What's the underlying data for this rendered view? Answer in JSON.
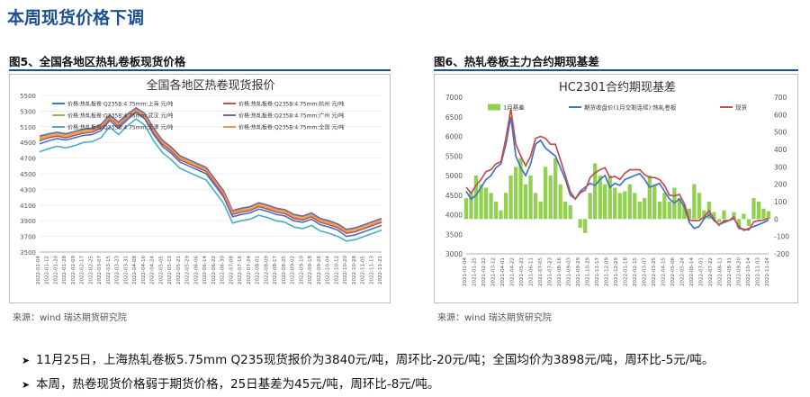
{
  "page_title": "本周现货价格下调",
  "left_figure": {
    "caption": "图5、全国各地区热轧卷板现货价格",
    "source": "来源：wind   瑞达期货研究院"
  },
  "right_figure": {
    "caption": "图6、热轧卷板主力合约期现基差",
    "source": "来源：wind   瑞达期货研究院"
  },
  "bullets": [
    "11月25日，上海热轧卷板5.75mm Q235现货报价为3840元/吨，周环比-20元/吨；全国均价为3898元/吨，周环比-5元/吨。",
    "本周，热卷现货价格弱于期货价格，25日基差为45元/吨，周环比-8元/吨。"
  ],
  "colors": {
    "title": "#1d4f91",
    "rule": "#1d4f91"
  },
  "chart_data": [
    {
      "type": "line",
      "title": "全国各地区热卷现货报价",
      "ylim": [
        3500,
        5500
      ],
      "yticks": [
        3500,
        3700,
        3900,
        4100,
        4300,
        4500,
        4700,
        4900,
        5100,
        5300,
        5500
      ],
      "x_tick_labels": [
        "2022-01-04",
        "2022-01-12",
        "2022-01-20",
        "2022-01-28",
        "2022-02-09",
        "2022-02-17",
        "2022-02-25",
        "2022-03-07",
        "2022-03-15",
        "2022-03-23",
        "2022-03-31",
        "2022-04-08",
        "2022-04-16",
        "2022-04-24",
        "2022-05-05",
        "2022-05-13",
        "2022-05-21",
        "2022-05-29",
        "2022-06-06",
        "2022-06-14",
        "2022-06-22",
        "2022-06-30",
        "2022-07-08",
        "2022-07-16",
        "2022-07-24",
        "2022-08-01",
        "2022-08-09",
        "2022-08-17",
        "2022-08-25",
        "2022-09-02",
        "2022-09-10",
        "2022-09-18",
        "2022-09-26",
        "2022-10-04",
        "2022-10-12",
        "2022-10-20",
        "2022-10-28",
        "2022-11-05",
        "2022-11-13",
        "2022-11-21"
      ],
      "legend": [
        "价格:热轧板卷:Q235B:4.75mm:上海 元/吨",
        "价格:热轧板卷:Q235B:4.75mm:杭州 元/吨",
        "价格:热轧板卷:Q235B:4.75mm:武汉 元/吨",
        "价格:热轧板卷:Q235B:4.75mm:广州 元/吨",
        "价格:热轧板卷:Q235B:4.75mm:天津 元/吨",
        "价格:热轧板卷:Q235B:4.75mm:全国 元/吨"
      ],
      "series": [
        {
          "name": "价格:热轧板卷:Q235B:4.75mm:上海 元/吨",
          "color": "#4472c4",
          "values": [
            4880,
            4920,
            4950,
            4930,
            4960,
            4990,
            5000,
            5050,
            5180,
            5080,
            5190,
            5280,
            5200,
            5000,
            4850,
            4760,
            4650,
            4600,
            4550,
            4500,
            4350,
            4200,
            3950,
            3980,
            4000,
            4050,
            4020,
            3980,
            3960,
            3900,
            3880,
            3920,
            3850,
            3820,
            3780,
            3700,
            3720,
            3760,
            3800,
            3840
          ]
        },
        {
          "name": "价格:热轧板卷:Q235B:4.75mm:杭州 元/吨",
          "color": "#c0504d",
          "values": [
            4920,
            4960,
            4980,
            4960,
            4990,
            5020,
            5030,
            5080,
            5210,
            5110,
            5220,
            5300,
            5230,
            5030,
            4880,
            4790,
            4680,
            4630,
            4580,
            4530,
            4380,
            4230,
            3980,
            4010,
            4030,
            4080,
            4050,
            4010,
            3990,
            3930,
            3910,
            3950,
            3880,
            3850,
            3810,
            3740,
            3760,
            3800,
            3840,
            3880
          ]
        },
        {
          "name": "价格:热轧板卷:Q235B:4.75mm:武汉 元/吨",
          "color": "#9bbb59",
          "values": [
            4960,
            5000,
            5020,
            5000,
            5030,
            5060,
            5070,
            5120,
            5240,
            5150,
            5250,
            5330,
            5260,
            5070,
            4920,
            4830,
            4720,
            4670,
            4620,
            4570,
            4420,
            4270,
            4020,
            4050,
            4070,
            4120,
            4090,
            4050,
            4030,
            3970,
            3950,
            3990,
            3920,
            3890,
            3850,
            3780,
            3800,
            3840,
            3880,
            3920
          ]
        },
        {
          "name": "价格:热轧板卷:Q235B:4.75mm:广州 元/吨",
          "color": "#8064a2",
          "values": [
            4980,
            5010,
            5030,
            5010,
            5040,
            5070,
            5080,
            5130,
            5250,
            5160,
            5260,
            5340,
            5270,
            5080,
            4930,
            4840,
            4730,
            4680,
            4630,
            4580,
            4430,
            4280,
            4030,
            4060,
            4080,
            4130,
            4100,
            4060,
            4040,
            3980,
            3960,
            4000,
            3930,
            3900,
            3860,
            3790,
            3810,
            3850,
            3890,
            3930
          ]
        },
        {
          "name": "价格:热轧板卷:Q235B:4.75mm:天津 元/吨",
          "color": "#4bacc6",
          "values": [
            4780,
            4820,
            4850,
            4830,
            4860,
            4900,
            4910,
            4960,
            5100,
            5000,
            5110,
            5200,
            5120,
            4920,
            4770,
            4680,
            4570,
            4520,
            4470,
            4420,
            4270,
            4120,
            3870,
            3900,
            3920,
            3970,
            3940,
            3900,
            3880,
            3820,
            3800,
            3840,
            3770,
            3740,
            3700,
            3640,
            3660,
            3700,
            3740,
            3780
          ]
        },
        {
          "name": "价格:热轧板卷:Q235B:4.75mm:全国 元/吨",
          "color": "#f79646",
          "values": [
            4940,
            4980,
            5000,
            4980,
            5010,
            5040,
            5050,
            5100,
            5220,
            5130,
            5230,
            5310,
            5240,
            5050,
            4900,
            4810,
            4700,
            4650,
            4600,
            4550,
            4400,
            4250,
            4000,
            4030,
            4050,
            4100,
            4070,
            4030,
            4010,
            3950,
            3930,
            3970,
            3900,
            3870,
            3830,
            3760,
            3780,
            3820,
            3860,
            3898
          ]
        }
      ]
    },
    {
      "type": "line",
      "title": "HC2301合约期现基差",
      "ylim_left": [
        3000,
        7000
      ],
      "yticks_left": [
        3000,
        3500,
        4000,
        4500,
        5000,
        5500,
        6000,
        6500,
        7000
      ],
      "ylim_right": [
        -200,
        700
      ],
      "yticks_right": [
        -200,
        -100,
        0,
        100,
        200,
        300,
        400,
        500,
        600,
        700
      ],
      "x_tick_labels": [
        "2021-01-04",
        "2021-01-25",
        "2021-02-22",
        "2021-03-12",
        "2021-04-01",
        "2021-04-22",
        "2021-05-21",
        "2021-06-11",
        "2021-07-05",
        "2021-07-23",
        "2021-08-16",
        "2021-09-03",
        "2021-09-29",
        "2021-10-29",
        "2021-11-17",
        "2021-12-09",
        "2021-12-29",
        "2022-01-18",
        "2022-02-15",
        "2022-03-07",
        "2022-03-25",
        "2022-04-15",
        "2022-05-06",
        "2022-05-24",
        "2022-06-14",
        "2022-07-01",
        "2022-07-22",
        "2022-08-11",
        "2022-08-31",
        "2022-09-20",
        "2022-10-14",
        "2022-11-03",
        "2022-11-24"
      ],
      "legend": [
        "1月基差",
        "期货收盘价(1月交割连续):热轧卷板",
        "现货"
      ],
      "series": [
        {
          "name": "1月基差",
          "color": "#92d050",
          "axis": "right",
          "kind": "bar",
          "values": [
            120,
            150,
            250,
            200,
            180,
            150,
            100,
            50,
            150,
            250,
            300,
            350,
            200,
            250,
            150,
            100,
            300,
            250,
            350,
            200,
            100,
            80,
            0,
            -50,
            -80,
            150,
            320,
            250,
            200,
            250,
            180,
            150,
            160,
            200,
            150,
            100,
            120,
            250,
            200,
            100,
            150,
            100,
            180,
            120,
            80,
            60,
            200,
            150,
            50,
            100,
            40,
            -20,
            50,
            0,
            40,
            -50,
            30,
            -40,
            120,
            100,
            60,
            45
          ]
        },
        {
          "name": "期货收盘价(1月交割连续):热轧卷板",
          "color": "#4472c4",
          "axis": "left",
          "kind": "line",
          "values": [
            4600,
            4400,
            4500,
            4700,
            4900,
            5000,
            5200,
            5300,
            5800,
            6500,
            5500,
            5200,
            5000,
            5300,
            5800,
            5900,
            5700,
            5600,
            5500,
            5200,
            4900,
            4500,
            4400,
            4600,
            4700,
            4800,
            4750,
            4900,
            5000,
            4700,
            4800,
            4750,
            4900,
            4950,
            5000,
            5050,
            4900,
            4700,
            4750,
            4800,
            4600,
            4400,
            4300,
            4400,
            4200,
            3800,
            3650,
            3700,
            3900,
            4000,
            3850,
            3750,
            3800,
            3850,
            3900,
            3700,
            3600,
            3650,
            3700,
            3750,
            3800,
            3870
          ]
        },
        {
          "name": "现货",
          "color": "#c0504d",
          "axis": "left",
          "kind": "line",
          "values": [
            4700,
            4550,
            4750,
            4900,
            5100,
            5150,
            5300,
            5350,
            5950,
            6700,
            5800,
            5500,
            5250,
            5500,
            5950,
            6000,
            5950,
            5800,
            5800,
            5400,
            5000,
            4580,
            4400,
            4560,
            4630,
            4950,
            5070,
            5150,
            5200,
            4950,
            4980,
            4900,
            5060,
            5150,
            5150,
            5150,
            5020,
            4950,
            4950,
            4900,
            4750,
            4500,
            4480,
            4520,
            4280,
            3860,
            3850,
            3850,
            3950,
            4100,
            3890,
            3730,
            3850,
            3850,
            3940,
            3650,
            3630,
            3610,
            3820,
            3850,
            3860,
            3915
          ]
        }
      ]
    }
  ]
}
